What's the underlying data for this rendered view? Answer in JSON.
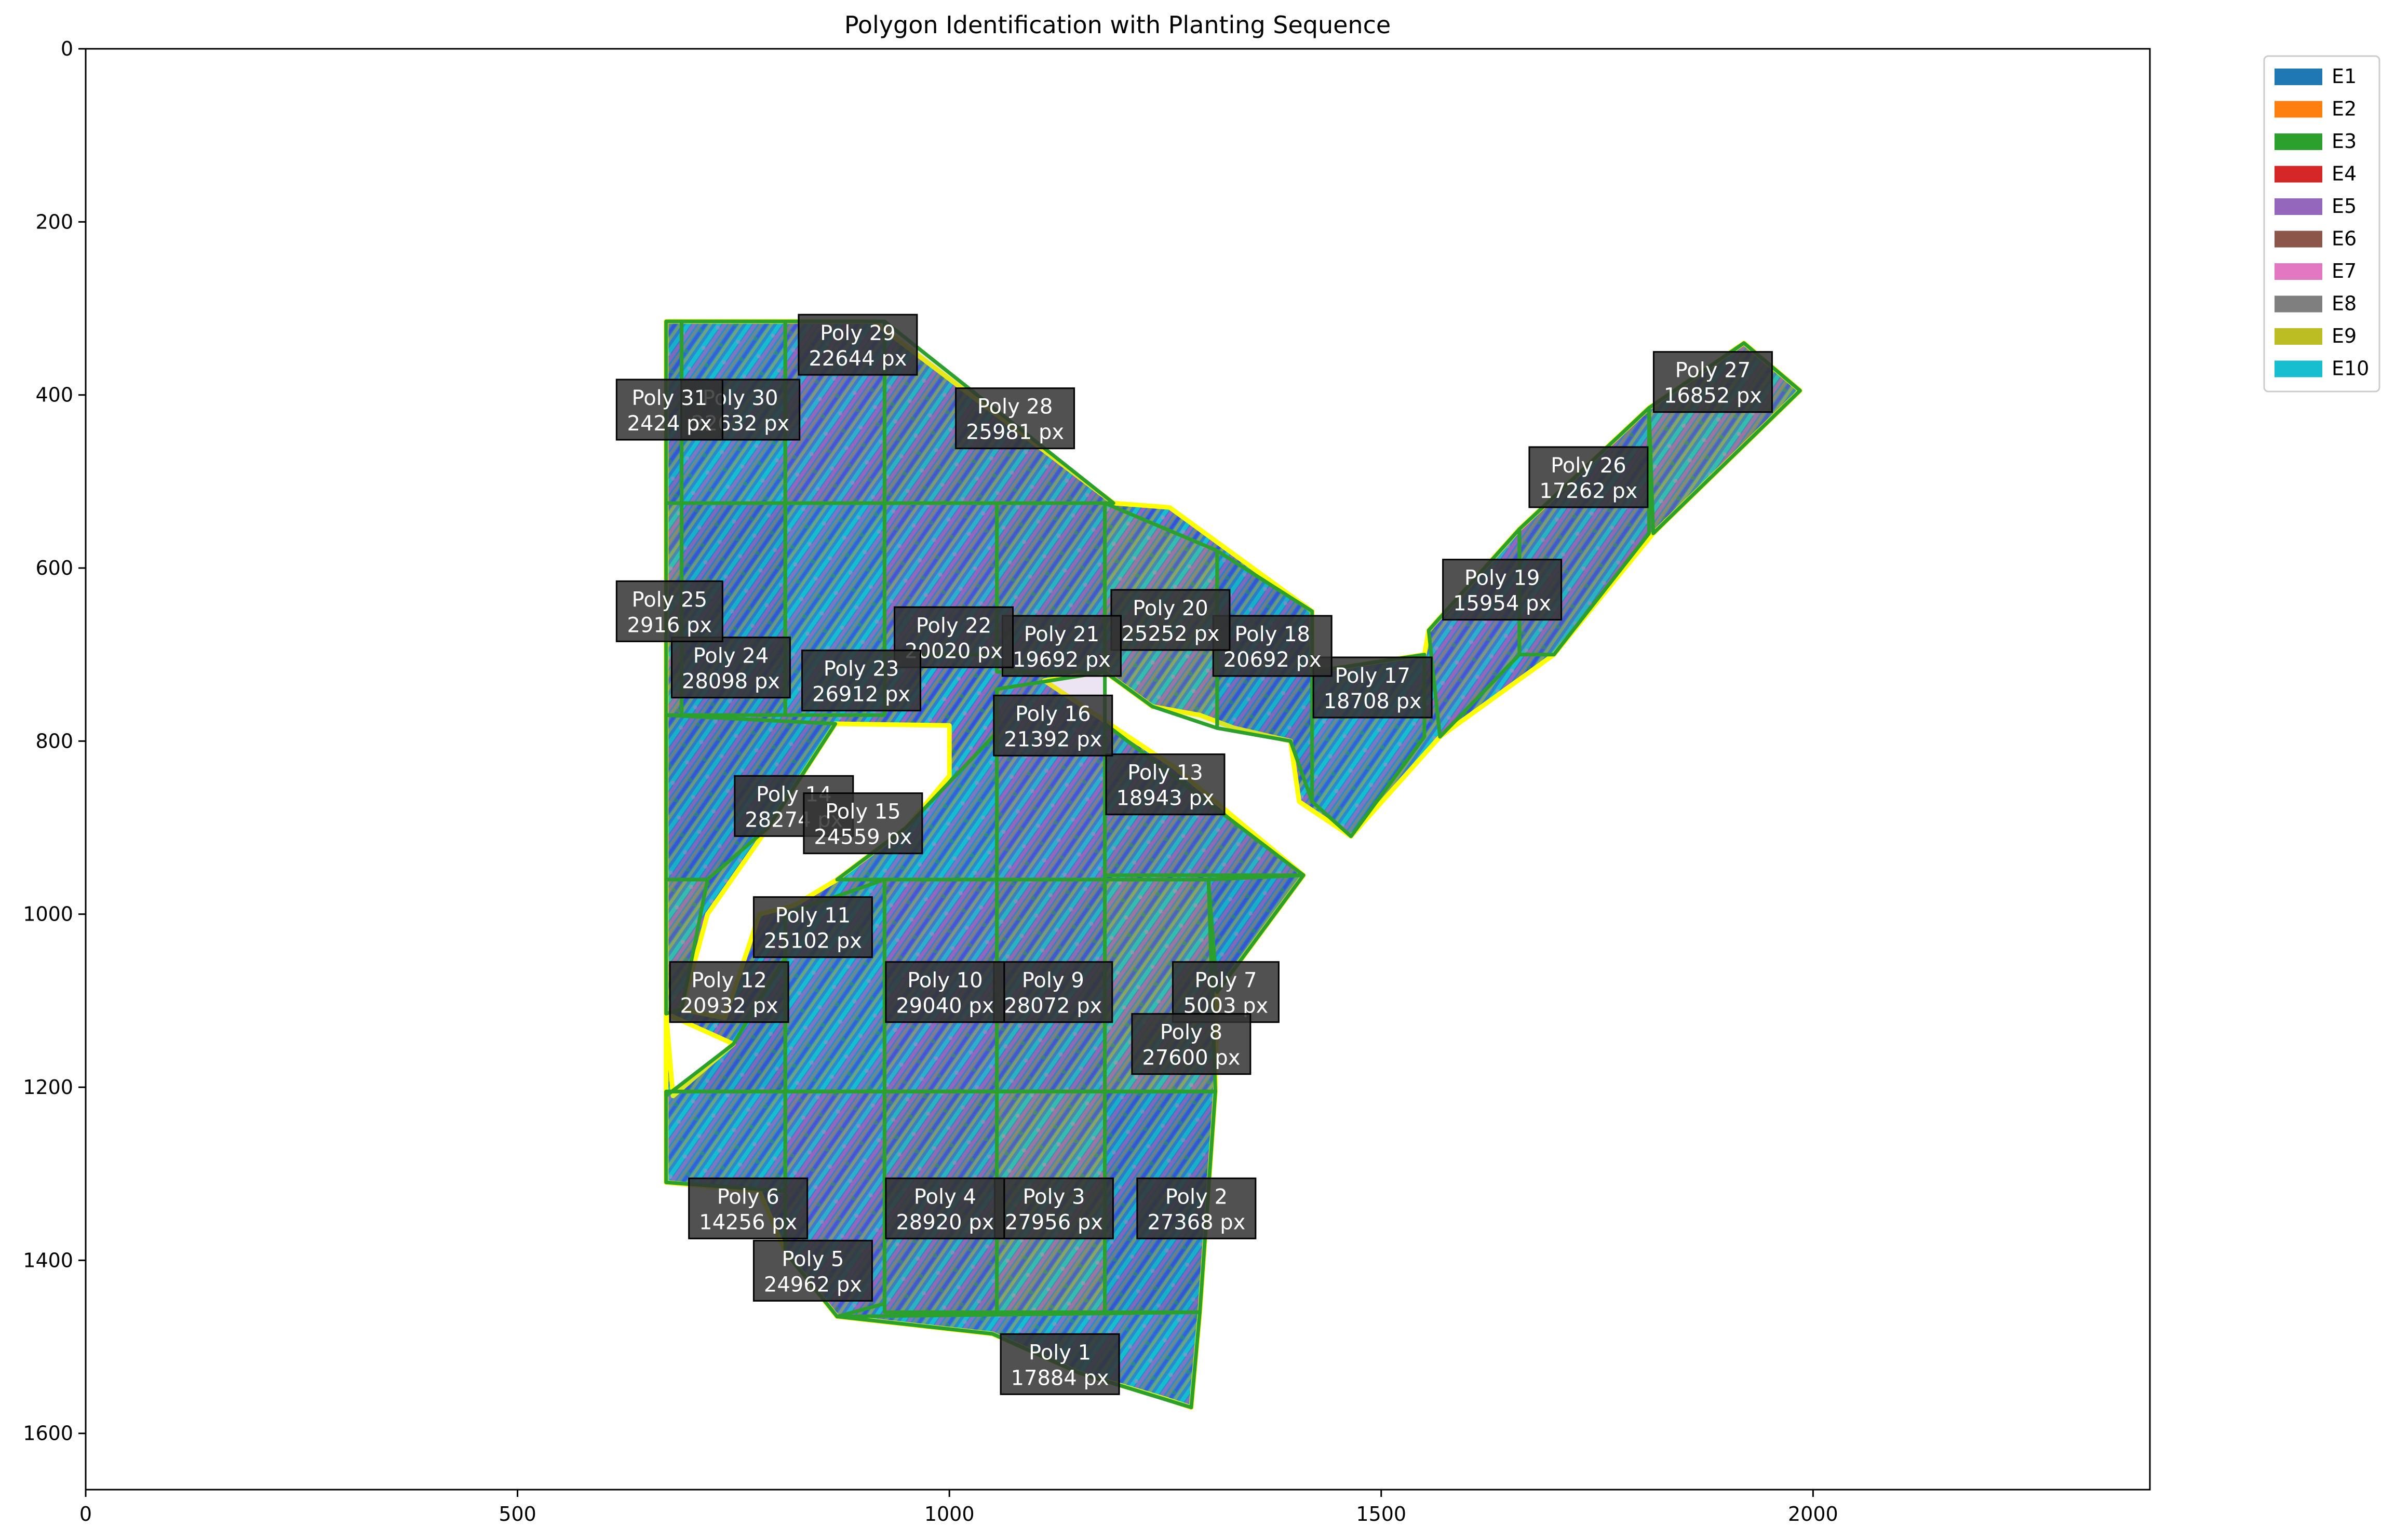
{
  "chart_data": {
    "type": "scatter",
    "title": "Polygon Identification with Planting Sequence",
    "xlabel": "",
    "ylabel": "",
    "xlim": [
      0,
      2390
    ],
    "ylim": [
      1665,
      0
    ],
    "x_ticks": [
      0,
      500,
      1000,
      1500,
      2000
    ],
    "y_ticks": [
      0,
      200,
      400,
      600,
      800,
      1000,
      1200,
      1400,
      1600
    ],
    "grid": false,
    "legend_position": "upper-right-outside",
    "legend": [
      {
        "label": "E1",
        "color": "#1f77b4"
      },
      {
        "label": "E2",
        "color": "#ff7f0e"
      },
      {
        "label": "E3",
        "color": "#2ca02c"
      },
      {
        "label": "E4",
        "color": "#d62728"
      },
      {
        "label": "E5",
        "color": "#9467bd"
      },
      {
        "label": "E6",
        "color": "#8c564b"
      },
      {
        "label": "E7",
        "color": "#e377c2"
      },
      {
        "label": "E8",
        "color": "#7f7f7f"
      },
      {
        "label": "E9",
        "color": "#bcbd22"
      },
      {
        "label": "E10",
        "color": "#17becf"
      }
    ],
    "outline_color": "#ffff00",
    "cell_border_color": "#2ca02c",
    "fill_colors": [
      "#1f77b4",
      "#17becf",
      "#9467bd",
      "#7f7f7f",
      "#bcbd22"
    ],
    "boundary": [
      [
        672,
        315
      ],
      [
        912,
        315
      ],
      [
        1190,
        525
      ],
      [
        1255,
        530
      ],
      [
        1420,
        650
      ],
      [
        1420,
        720
      ],
      [
        1550,
        700
      ],
      [
        1555,
        672
      ],
      [
        1660,
        555
      ],
      [
        1810,
        415
      ],
      [
        1920,
        340
      ],
      [
        1985,
        395
      ],
      [
        1815,
        560
      ],
      [
        1700,
        700
      ],
      [
        1568,
        795
      ],
      [
        1465,
        910
      ],
      [
        1405,
        870
      ],
      [
        1395,
        800
      ],
      [
        1330,
        785
      ],
      [
        1290,
        770
      ],
      [
        1235,
        760
      ],
      [
        1180,
        720
      ],
      [
        1110,
        730
      ],
      [
        1260,
        830
      ],
      [
        1410,
        955
      ],
      [
        1310,
        1090
      ],
      [
        1308,
        1205
      ],
      [
        1290,
        1460
      ],
      [
        1280,
        1570
      ],
      [
        1250,
        1560
      ],
      [
        1150,
        1530
      ],
      [
        1050,
        1485
      ],
      [
        870,
        1465
      ],
      [
        810,
        1390
      ],
      [
        780,
        1320
      ],
      [
        672,
        1310
      ],
      [
        672,
        960
      ],
      [
        672,
        770
      ]
    ],
    "holes": [
      [
        [
          868,
          780
        ],
        [
          1000,
          782
        ],
        [
          1000,
          840
        ],
        [
          950,
          900
        ],
        [
          870,
          960
        ],
        [
          820,
          990
        ],
        [
          780,
          1000
        ],
        [
          760,
          1060
        ],
        [
          740,
          1120
        ],
        [
          690,
          1110
        ],
        [
          720,
          1000
        ],
        [
          790,
          900
        ]
      ],
      [
        [
          672,
          1115
        ],
        [
          750,
          1150
        ],
        [
          680,
          1210
        ]
      ]
    ],
    "cells": [
      {
        "points": [
          [
            672,
            315
          ],
          [
            690,
            315
          ],
          [
            690,
            525
          ],
          [
            672,
            525
          ]
        ]
      },
      {
        "points": [
          [
            690,
            315
          ],
          [
            810,
            315
          ],
          [
            810,
            525
          ],
          [
            690,
            525
          ]
        ]
      },
      {
        "points": [
          [
            810,
            315
          ],
          [
            925,
            315
          ],
          [
            925,
            525
          ],
          [
            810,
            525
          ]
        ]
      },
      {
        "points": [
          [
            925,
            315
          ],
          [
            1190,
            525
          ],
          [
            925,
            525
          ]
        ]
      },
      {
        "points": [
          [
            672,
            525
          ],
          [
            690,
            525
          ],
          [
            690,
            770
          ],
          [
            672,
            770
          ]
        ]
      },
      {
        "points": [
          [
            690,
            525
          ],
          [
            810,
            525
          ],
          [
            810,
            770
          ],
          [
            690,
            770
          ]
        ]
      },
      {
        "points": [
          [
            810,
            525
          ],
          [
            925,
            525
          ],
          [
            925,
            770
          ],
          [
            810,
            770
          ]
        ]
      },
      {
        "points": [
          [
            925,
            525
          ],
          [
            1055,
            525
          ],
          [
            1055,
            700
          ],
          [
            925,
            700
          ]
        ]
      },
      {
        "points": [
          [
            1055,
            525
          ],
          [
            1180,
            525
          ],
          [
            1180,
            720
          ],
          [
            1055,
            720
          ]
        ]
      },
      {
        "points": [
          [
            1180,
            525
          ],
          [
            1310,
            580
          ],
          [
            1310,
            785
          ],
          [
            1235,
            760
          ],
          [
            1180,
            720
          ]
        ]
      },
      {
        "points": [
          [
            1310,
            580
          ],
          [
            1420,
            650
          ],
          [
            1420,
            870
          ],
          [
            1395,
            800
          ],
          [
            1310,
            785
          ]
        ]
      },
      {
        "points": [
          [
            1420,
            720
          ],
          [
            1550,
            700
          ],
          [
            1550,
            795
          ],
          [
            1465,
            910
          ],
          [
            1420,
            870
          ]
        ]
      },
      {
        "points": [
          [
            1555,
            672
          ],
          [
            1660,
            555
          ],
          [
            1660,
            700
          ],
          [
            1568,
            795
          ]
        ]
      },
      {
        "points": [
          [
            1660,
            555
          ],
          [
            1810,
            415
          ],
          [
            1810,
            560
          ],
          [
            1700,
            700
          ],
          [
            1660,
            700
          ]
        ]
      },
      {
        "points": [
          [
            1810,
            415
          ],
          [
            1920,
            340
          ],
          [
            1985,
            395
          ],
          [
            1815,
            560
          ]
        ]
      },
      {
        "points": [
          [
            672,
            770
          ],
          [
            868,
            780
          ],
          [
            790,
            900
          ],
          [
            720,
            960
          ],
          [
            672,
            960
          ]
        ]
      },
      {
        "points": [
          [
            950,
            900
          ],
          [
            1055,
            790
          ],
          [
            1055,
            960
          ],
          [
            870,
            960
          ]
        ]
      },
      {
        "points": [
          [
            1055,
            740
          ],
          [
            1180,
            720
          ],
          [
            1180,
            960
          ],
          [
            1055,
            960
          ]
        ]
      },
      {
        "points": [
          [
            1180,
            780
          ],
          [
            1410,
            955
          ],
          [
            1180,
            955
          ]
        ]
      },
      {
        "points": [
          [
            672,
            960
          ],
          [
            720,
            960
          ],
          [
            690,
            1110
          ],
          [
            672,
            1115
          ]
        ]
      },
      {
        "points": [
          [
            672,
            1210
          ],
          [
            750,
            1150
          ],
          [
            810,
            1050
          ],
          [
            810,
            1205
          ],
          [
            672,
            1205
          ]
        ]
      },
      {
        "points": [
          [
            810,
            1000
          ],
          [
            925,
            960
          ],
          [
            925,
            1205
          ],
          [
            810,
            1205
          ]
        ]
      },
      {
        "points": [
          [
            925,
            960
          ],
          [
            1055,
            960
          ],
          [
            1055,
            1205
          ],
          [
            925,
            1205
          ]
        ]
      },
      {
        "points": [
          [
            1055,
            960
          ],
          [
            1180,
            960
          ],
          [
            1180,
            1205
          ],
          [
            1055,
            1205
          ]
        ]
      },
      {
        "points": [
          [
            1180,
            960
          ],
          [
            1300,
            960
          ],
          [
            1308,
            1205
          ],
          [
            1180,
            1205
          ]
        ]
      },
      {
        "points": [
          [
            1300,
            960
          ],
          [
            1410,
            955
          ],
          [
            1310,
            1090
          ]
        ]
      },
      {
        "points": [
          [
            672,
            1205
          ],
          [
            810,
            1205
          ],
          [
            810,
            1320
          ],
          [
            672,
            1310
          ]
        ]
      },
      {
        "points": [
          [
            810,
            1205
          ],
          [
            925,
            1205
          ],
          [
            925,
            1450
          ],
          [
            870,
            1465
          ],
          [
            810,
            1390
          ]
        ]
      },
      {
        "points": [
          [
            925,
            1205
          ],
          [
            1055,
            1205
          ],
          [
            1055,
            1460
          ],
          [
            925,
            1460
          ]
        ]
      },
      {
        "points": [
          [
            1055,
            1205
          ],
          [
            1180,
            1205
          ],
          [
            1180,
            1460
          ],
          [
            1055,
            1460
          ]
        ]
      },
      {
        "points": [
          [
            1180,
            1205
          ],
          [
            1308,
            1205
          ],
          [
            1290,
            1460
          ],
          [
            1180,
            1460
          ]
        ]
      },
      {
        "points": [
          [
            870,
            1465
          ],
          [
            1290,
            1460
          ],
          [
            1280,
            1570
          ],
          [
            1150,
            1530
          ],
          [
            1050,
            1485
          ]
        ]
      }
    ],
    "labels": [
      {
        "name": "Poly 1",
        "area": "17884 px",
        "x": 1128,
        "y": 1520
      },
      {
        "name": "Poly 2",
        "area": "27368 px",
        "x": 1286,
        "y": 1340
      },
      {
        "name": "Poly 3",
        "area": "27956 px",
        "x": 1121,
        "y": 1340
      },
      {
        "name": "Poly 4",
        "area": "28920 px",
        "x": 995,
        "y": 1340
      },
      {
        "name": "Poly 5",
        "area": "24962 px",
        "x": 842,
        "y": 1412
      },
      {
        "name": "Poly 6",
        "area": "14256 px",
        "x": 767,
        "y": 1340
      },
      {
        "name": "Poly 7",
        "area": "5003 px",
        "x": 1320,
        "y": 1090
      },
      {
        "name": "Poly 8",
        "area": "27600 px",
        "x": 1280,
        "y": 1150
      },
      {
        "name": "Poly 9",
        "area": "28072 px",
        "x": 1120,
        "y": 1090
      },
      {
        "name": "Poly 10",
        "area": "29040 px",
        "x": 995,
        "y": 1090
      },
      {
        "name": "Poly 11",
        "area": "25102 px",
        "x": 842,
        "y": 1015
      },
      {
        "name": "Poly 12",
        "area": "20932 px",
        "x": 745,
        "y": 1090
      },
      {
        "name": "Poly 13",
        "area": "18943 px",
        "x": 1250,
        "y": 850
      },
      {
        "name": "Poly 14",
        "area": "28274 px",
        "x": 820,
        "y": 875
      },
      {
        "name": "Poly 15",
        "area": "24559 px",
        "x": 900,
        "y": 895
      },
      {
        "name": "Poly 16",
        "area": "21392 px",
        "x": 1120,
        "y": 782
      },
      {
        "name": "Poly 17",
        "area": "18708 px",
        "x": 1490,
        "y": 738
      },
      {
        "name": "Poly 18",
        "area": "20692 px",
        "x": 1374,
        "y": 690
      },
      {
        "name": "Poly 19",
        "area": "15954 px",
        "x": 1640,
        "y": 625
      },
      {
        "name": "Poly 20",
        "area": "25252 px",
        "x": 1256,
        "y": 660
      },
      {
        "name": "Poly 21",
        "area": "19692 px",
        "x": 1130,
        "y": 690
      },
      {
        "name": "Poly 22",
        "area": "20020 px",
        "x": 1005,
        "y": 680
      },
      {
        "name": "Poly 23",
        "area": "26912 px",
        "x": 898,
        "y": 730
      },
      {
        "name": "Poly 24",
        "area": "28098 px",
        "x": 747,
        "y": 715
      },
      {
        "name": "Poly 25",
        "area": "2916 px",
        "x": 676,
        "y": 650
      },
      {
        "name": "Poly 26",
        "area": "17262 px",
        "x": 1740,
        "y": 495
      },
      {
        "name": "Poly 27",
        "area": "16852 px",
        "x": 1884,
        "y": 385
      },
      {
        "name": "Poly 28",
        "area": "25981 px",
        "x": 1076,
        "y": 427
      },
      {
        "name": "Poly 29",
        "area": "22644 px",
        "x": 894,
        "y": 342
      },
      {
        "name": "Poly 30",
        "area": "22632 px",
        "x": 758,
        "y": 417
      },
      {
        "name": "Poly 31",
        "area": "2424 px",
        "x": 676,
        "y": 417
      }
    ]
  }
}
